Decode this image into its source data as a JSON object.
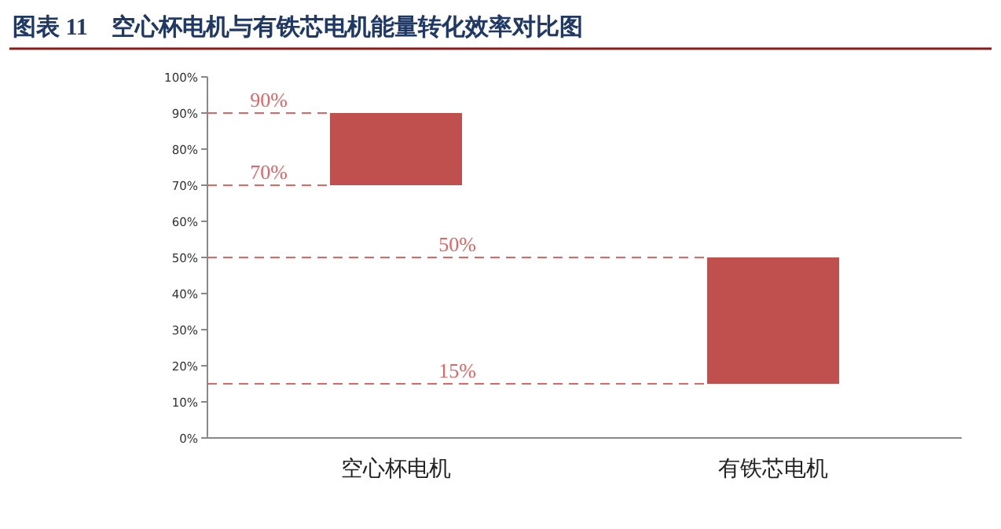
{
  "chart_data": {
    "type": "bar",
    "title": "图表 11　空心杯电机与有铁芯电机能量转化效率对比图",
    "categories": [
      "空心杯电机",
      "有铁芯电机"
    ],
    "values": [
      20,
      35
    ],
    "base": [
      70,
      15
    ],
    "color": "#c0504d",
    "ylim": [
      0,
      100
    ],
    "yticks": [
      {
        "value": 0,
        "label": "0%"
      },
      {
        "value": 10,
        "label": "10%"
      },
      {
        "value": 20,
        "label": "20%"
      },
      {
        "value": 30,
        "label": "30%"
      },
      {
        "value": 40,
        "label": "40%"
      },
      {
        "value": 50,
        "label": "50%"
      },
      {
        "value": 60,
        "label": "60%"
      },
      {
        "value": 70,
        "label": "70%"
      },
      {
        "value": 80,
        "label": "80%"
      },
      {
        "value": 90,
        "label": "90%"
      },
      {
        "value": 100,
        "label": "100%"
      }
    ],
    "ref_lines": [
      {
        "axis": "y",
        "value": 90,
        "label": "90%",
        "color": "#e06666",
        "line_style": "dashed"
      },
      {
        "axis": "y",
        "value": 70,
        "label": "70%",
        "color": "#e06666",
        "line_style": "dashed"
      },
      {
        "axis": "y",
        "value": 50,
        "label": "50%",
        "color": "#e06666",
        "line_style": "dashed"
      },
      {
        "axis": "y",
        "value": 15,
        "label": "15%",
        "color": "#e06666",
        "line_style": "dashed"
      }
    ],
    "grid": false
  }
}
